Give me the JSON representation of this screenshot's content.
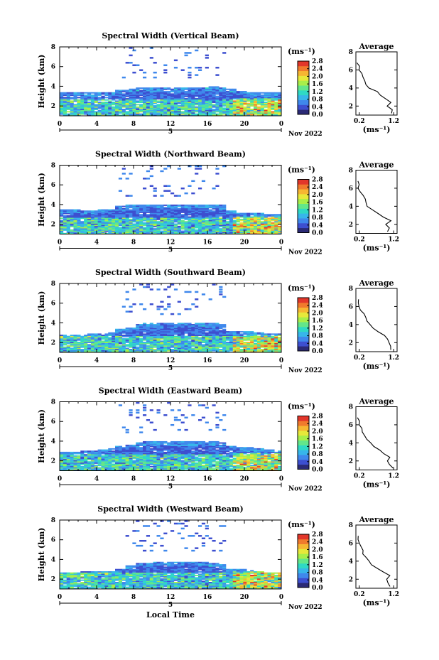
{
  "figure": {
    "date_label": "Nov 2022",
    "x_axis_title": "Local Time",
    "under_axis_label": "5",
    "y_axis_title": "Height (km)",
    "units_label": "(ms⁻¹)",
    "avg_title": "Average",
    "avg_units_label": "(ms⁻¹)",
    "colors": {
      "palette": [
        "#2b2a76",
        "#3d4fd0",
        "#3f88ec",
        "#37b6ea",
        "#2fd9c4",
        "#63e68a",
        "#a8ee49",
        "#e7e83a",
        "#f6b632",
        "#f07a2d",
        "#e2362a"
      ]
    }
  },
  "chart_data": [
    {
      "type": "heatmap",
      "title": "Spectral Width (Vertical Beam)",
      "xlabel": "",
      "ylabel": "Height (km)",
      "x_ticks": [
        "0",
        "4",
        "8",
        "12",
        "16",
        "20",
        "0"
      ],
      "xlim": [
        0,
        24
      ],
      "y_ticks": [
        "2",
        "4",
        "6",
        "8"
      ],
      "ylim": [
        1,
        8
      ],
      "colorbar": {
        "ticks": [
          "0.0",
          "0.4",
          "0.8",
          "1.2",
          "1.6",
          "2.0",
          "2.4",
          "2.8"
        ],
        "range": [
          0,
          2.9
        ]
      },
      "top_height_profile": [
        3.3,
        3.3,
        3.3,
        3.3,
        3.4,
        3.4,
        3.6,
        3.7,
        3.8,
        3.8,
        3.8,
        3.8,
        3.8,
        3.8,
        3.8,
        3.8,
        3.9,
        3.8,
        3.7,
        3.5,
        3.4,
        3.4,
        3.3,
        3.3
      ],
      "average": {
        "title": "Average",
        "xlabel": "(ms⁻¹)",
        "x_ticks": [
          "0.2",
          "1.2"
        ],
        "xlim": [
          0.1,
          1.3
        ],
        "y_ticks": [
          "2",
          "4",
          "6",
          "8"
        ],
        "ylim": [
          1,
          8
        ],
        "height": [
          1.2,
          1.6,
          2.0,
          2.4,
          2.8,
          3.2,
          3.6,
          4.0,
          4.4,
          4.8,
          5.2,
          5.6,
          6.0,
          6.4,
          6.8
        ],
        "value": [
          1.1,
          1.15,
          1.05,
          1.1,
          0.95,
          0.8,
          0.7,
          0.5,
          0.4,
          0.35,
          0.3,
          0.25,
          0.22,
          0.18,
          0.15
        ]
      }
    },
    {
      "type": "heatmap",
      "title": "Spectral Width (Northward Beam)",
      "xlabel": "",
      "ylabel": "Height (km)",
      "x_ticks": [
        "0",
        "4",
        "8",
        "12",
        "16",
        "20",
        "0"
      ],
      "xlim": [
        0,
        24
      ],
      "y_ticks": [
        "2",
        "4",
        "6",
        "8"
      ],
      "ylim": [
        1,
        8
      ],
      "colorbar": {
        "ticks": [
          "0.0",
          "0.4",
          "0.8",
          "1.2",
          "1.6",
          "2.0",
          "2.4",
          "2.8"
        ],
        "range": [
          0,
          2.9
        ]
      },
      "top_height_profile": [
        3.5,
        3.5,
        3.4,
        3.4,
        3.5,
        3.5,
        3.8,
        3.9,
        4.0,
        4.0,
        4.0,
        4.0,
        4.0,
        4.0,
        4.0,
        4.0,
        4.0,
        3.9,
        3.4,
        3.1,
        3.1,
        3.1,
        3.0,
        3.0
      ],
      "average": {
        "title": "Average",
        "xlabel": "(ms⁻¹)",
        "x_ticks": [
          "0.2",
          "1.2"
        ],
        "xlim": [
          0.1,
          1.3
        ],
        "y_ticks": [
          "2",
          "4",
          "6",
          "8"
        ],
        "ylim": [
          1,
          8
        ],
        "height": [
          1.2,
          1.6,
          2.0,
          2.4,
          2.8,
          3.2,
          3.6,
          4.0,
          4.4,
          4.8,
          5.2,
          5.6,
          6.0,
          6.4,
          6.8
        ],
        "value": [
          1.05,
          1.1,
          1.0,
          1.1,
          0.9,
          0.75,
          0.6,
          0.45,
          0.4,
          0.35,
          0.3,
          0.25,
          0.2,
          0.18,
          0.15
        ]
      }
    },
    {
      "type": "heatmap",
      "title": "Spectral Width (Southward Beam)",
      "xlabel": "",
      "ylabel": "Height (km)",
      "x_ticks": [
        "0",
        "4",
        "8",
        "12",
        "16",
        "20",
        "0"
      ],
      "xlim": [
        0,
        24
      ],
      "y_ticks": [
        "2",
        "4",
        "6",
        "8"
      ],
      "ylim": [
        1,
        8
      ],
      "colorbar": {
        "ticks": [
          "0.0",
          "0.4",
          "0.8",
          "1.2",
          "1.6",
          "2.0",
          "2.4",
          "2.8"
        ],
        "range": [
          0,
          2.9
        ]
      },
      "top_height_profile": [
        2.7,
        2.8,
        2.8,
        2.9,
        2.9,
        3.0,
        3.4,
        3.5,
        3.8,
        3.9,
        3.9,
        3.9,
        3.9,
        3.9,
        3.9,
        3.9,
        3.9,
        3.8,
        3.1,
        3.1,
        3.1,
        3.0,
        2.9,
        2.9
      ],
      "average": {
        "title": "Average",
        "xlabel": "(ms⁻¹)",
        "x_ticks": [
          "0.2",
          "1.2"
        ],
        "xlim": [
          0.1,
          1.3
        ],
        "y_ticks": [
          "2",
          "4",
          "6",
          "8"
        ],
        "ylim": [
          1,
          8
        ],
        "height": [
          1.2,
          1.6,
          2.0,
          2.4,
          2.8,
          3.2,
          3.6,
          4.0,
          4.4,
          4.8,
          5.2,
          5.6,
          6.0,
          6.4,
          6.8
        ],
        "value": [
          1.1,
          1.1,
          1.1,
          1.05,
          0.9,
          0.75,
          0.6,
          0.5,
          0.4,
          0.35,
          0.3,
          0.25,
          0.2,
          0.18,
          0.15
        ]
      }
    },
    {
      "type": "heatmap",
      "title": "Spectral Width (Eastward Beam)",
      "xlabel": "",
      "ylabel": "Height (km)",
      "x_ticks": [
        "0",
        "4",
        "8",
        "12",
        "16",
        "20",
        "0"
      ],
      "xlim": [
        0,
        24
      ],
      "y_ticks": [
        "2",
        "4",
        "6",
        "8"
      ],
      "ylim": [
        1,
        8
      ],
      "colorbar": {
        "ticks": [
          "0.0",
          "0.4",
          "0.8",
          "1.2",
          "1.6",
          "2.0",
          "2.4",
          "2.8"
        ],
        "range": [
          0,
          2.9
        ]
      },
      "top_height_profile": [
        2.9,
        2.9,
        3.0,
        3.0,
        3.1,
        3.2,
        3.5,
        3.6,
        3.8,
        3.9,
        3.9,
        3.9,
        3.9,
        3.9,
        3.9,
        3.9,
        3.9,
        3.8,
        3.5,
        3.3,
        3.3,
        3.2,
        3.1,
        3.0
      ],
      "average": {
        "title": "Average",
        "xlabel": "(ms⁻¹)",
        "x_ticks": [
          "0.2",
          "1.2"
        ],
        "xlim": [
          0.1,
          1.3
        ],
        "y_ticks": [
          "2",
          "4",
          "6",
          "8"
        ],
        "ylim": [
          1,
          8
        ],
        "height": [
          1.2,
          1.6,
          2.0,
          2.4,
          2.8,
          3.2,
          3.6,
          4.0,
          4.4,
          4.8,
          5.2,
          5.6,
          6.0,
          6.4,
          6.8
        ],
        "value": [
          1.15,
          1.1,
          1.0,
          1.05,
          0.9,
          0.8,
          0.65,
          0.5,
          0.42,
          0.35,
          0.3,
          0.25,
          0.22,
          0.18,
          0.15
        ]
      }
    },
    {
      "type": "heatmap",
      "title": "Spectral Width (Westward Beam)",
      "xlabel": "Local Time",
      "ylabel": "Height (km)",
      "x_ticks": [
        "0",
        "4",
        "8",
        "12",
        "16",
        "20",
        "0"
      ],
      "xlim": [
        0,
        24
      ],
      "y_ticks": [
        "2",
        "4",
        "6",
        "8"
      ],
      "ylim": [
        1,
        8
      ],
      "colorbar": {
        "ticks": [
          "0.0",
          "0.4",
          "0.8",
          "1.2",
          "1.6",
          "2.0",
          "2.4",
          "2.8"
        ],
        "range": [
          0,
          2.9
        ]
      },
      "top_height_profile": [
        2.6,
        2.6,
        2.7,
        2.7,
        2.8,
        2.8,
        3.0,
        3.4,
        3.6,
        3.6,
        3.7,
        3.7,
        3.7,
        3.7,
        3.7,
        3.7,
        3.6,
        3.5,
        3.0,
        3.0,
        2.9,
        2.8,
        2.6,
        2.6
      ],
      "average": {
        "title": "Average",
        "xlabel": "(ms⁻¹)",
        "x_ticks": [
          "0.2",
          "1.2"
        ],
        "xlim": [
          0.1,
          1.3
        ],
        "y_ticks": [
          "2",
          "4",
          "6",
          "8"
        ],
        "ylim": [
          1,
          8
        ],
        "height": [
          1.2,
          1.6,
          2.0,
          2.4,
          2.8,
          3.2,
          3.6,
          4.0,
          4.4,
          4.8,
          5.2,
          5.6,
          6.0,
          6.4,
          6.8
        ],
        "value": [
          1.1,
          1.05,
          1.0,
          1.05,
          0.9,
          0.7,
          0.55,
          0.45,
          0.38,
          0.32,
          0.28,
          0.25,
          0.2,
          0.18,
          0.15
        ]
      }
    }
  ]
}
